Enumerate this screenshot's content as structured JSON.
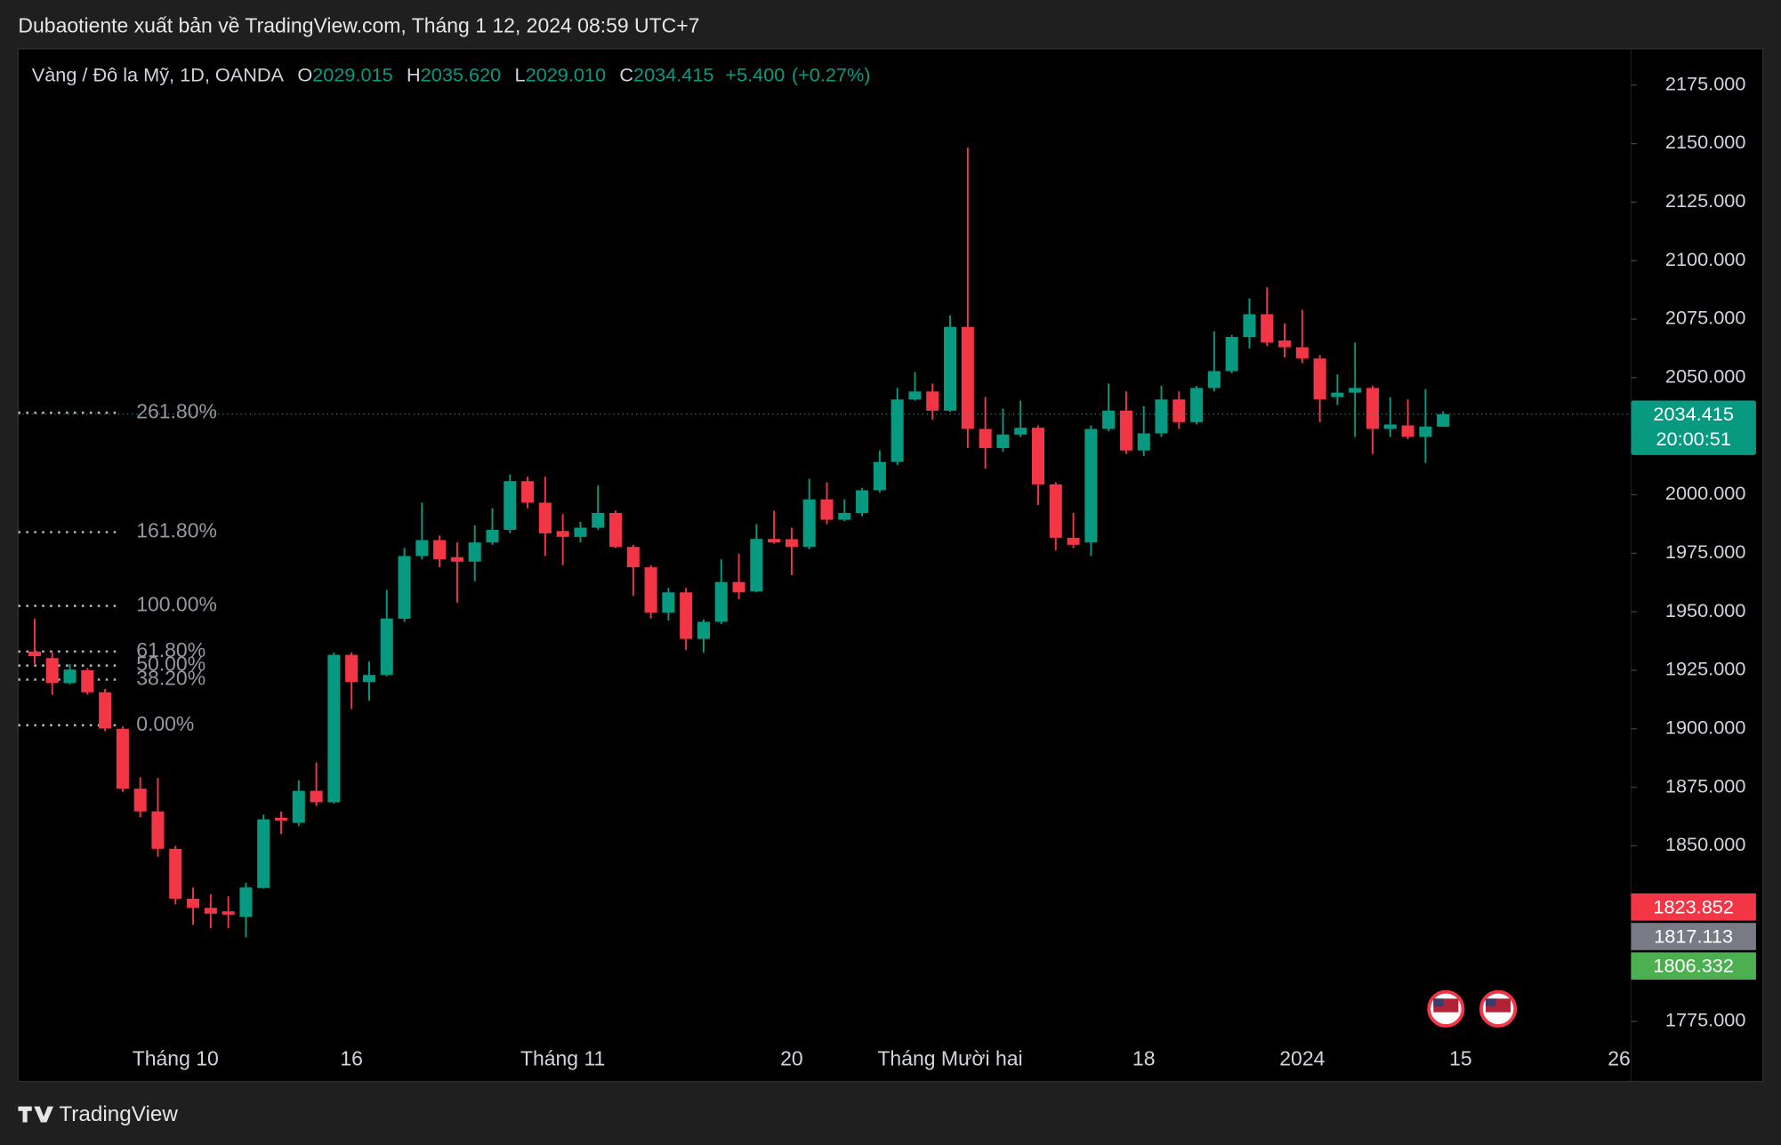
{
  "header": {
    "title": "Dubaotiente xuất bản về TradingView.com, Tháng 1 12, 2024 08:59 UTC+7"
  },
  "footer": {
    "brand": "TradingView"
  },
  "chart_data": {
    "type": "candlestick",
    "legend": {
      "symbol": "Vàng / Đô la Mỹ, 1D, OANDA",
      "items": [
        {
          "key": "O",
          "value": 2029.015,
          "label": "2029.015"
        },
        {
          "key": "H",
          "value": 2035.62,
          "label": "2035.620"
        },
        {
          "key": "L",
          "value": 2029.01,
          "label": "2029.010"
        },
        {
          "key": "C",
          "value": 2034.415,
          "label": "2034.415"
        }
      ],
      "change": {
        "value": 5.4,
        "label": "+5.400"
      },
      "change_pct": {
        "value": 0.27,
        "label": "(+0.27%)"
      }
    },
    "up_color": "#089981",
    "down_color": "#f23645",
    "categories": [
      null,
      null,
      null,
      null,
      null,
      null,
      null,
      null,
      "Tháng 10",
      null,
      null,
      null,
      null,
      null,
      null,
      null,
      null,
      null,
      "16",
      null,
      null,
      null,
      null,
      null,
      null,
      null,
      null,
      null,
      null,
      null,
      "Tháng 11",
      null,
      null,
      null,
      null,
      null,
      null,
      null,
      null,
      null,
      null,
      null,
      null,
      "20",
      null,
      null,
      null,
      null,
      null,
      null,
      null,
      null,
      "Tháng Mười hai",
      null,
      null,
      null,
      null,
      null,
      null,
      null,
      null,
      null,
      null,
      "18",
      null,
      null,
      null,
      null,
      null,
      null,
      null,
      null,
      "2024",
      null,
      null,
      null,
      null,
      null,
      null,
      null,
      null,
      "15",
      null,
      null,
      null,
      null,
      null,
      null,
      null,
      null,
      "26"
    ],
    "open": [
      1933,
      1930.2,
      1919.5,
      1925,
      1915.6,
      1900,
      1874.4,
      1864.7,
      1848.7,
      1827.4,
      1823.5,
      1822,
      1819.6,
      1832,
      1862,
      1859.8,
      1873.5,
      1868.6,
      1931.6,
      1920,
      1923,
      1947,
      1973.8,
      1980.6,
      1973.3,
      1971.4,
      1979.6,
      1985,
      2005.8,
      1996.6,
      1984.5,
      1982,
      1985.9,
      1992.2,
      1977.7,
      1969,
      1949.6,
      1958.3,
      1938.4,
      1945.7,
      1962.7,
      1958.7,
      1981.1,
      1981,
      1977.7,
      1998,
      1989.3,
      1992.2,
      2001.9,
      2014,
      2040.7,
      2044.1,
      2035.9,
      2071.7,
      2028.1,
      2019.9,
      2025.7,
      2028.6,
      2004.4,
      1981.6,
      1979.6,
      2028.1,
      2035.9,
      2018.9,
      2026.2,
      2040.7,
      2031,
      2045.6,
      2052.8,
      2067.4,
      2077.1,
      2065.9,
      2063,
      2058.2,
      2041.7,
      2043.6,
      2045.6,
      2028.1,
      2029.6,
      2024.7,
      2029.015,
      null,
      null,
      null,
      null,
      null,
      null,
      null,
      null,
      null,
      null
    ],
    "high": [
      1947,
      1932.6,
      1927.7,
      1926,
      1917,
      1901,
      1879.3,
      1879,
      1850,
      1832.2,
      1829.3,
      1828.4,
      1834.2,
      1863.3,
      1864.7,
      1878,
      1885.6,
      1932.6,
      1932.6,
      1928.7,
      1959.3,
      1977.2,
      1996.6,
      1982.5,
      1979.6,
      1986.9,
      1994.2,
      2008.7,
      2007.7,
      2007.7,
      1991.7,
      1988.4,
      2003.9,
      1993.2,
      1978.6,
      1969.9,
      1960.2,
      1960.2,
      1946.7,
      1972.4,
      1974.8,
      1987.4,
      1993.2,
      1985.9,
      2006.8,
      2005.3,
      1998,
      2002.9,
      2018.9,
      2045.6,
      2052.4,
      2047.5,
      2076.6,
      2148.3,
      2041.7,
      2036.8,
      2040.2,
      2029.6,
      2005.3,
      1992.2,
      2029.6,
      2047.5,
      2044.1,
      2037.8,
      2046.5,
      2044.1,
      2046.5,
      2069.8,
      2068.3,
      2083.9,
      2088.7,
      2073.2,
      2079,
      2059.6,
      2051.4,
      2065,
      2046.5,
      2041.7,
      2040.7,
      2045.1,
      2035.62,
      null,
      null,
      null,
      null,
      null,
      null,
      null,
      null,
      null,
      null
    ],
    "low": [
      1927.7,
      1914.6,
      1919,
      1914.6,
      1899,
      1873,
      1862.3,
      1845.3,
      1825,
      1816.2,
      1814.8,
      1814.8,
      1810.9,
      1831.7,
      1855,
      1858.4,
      1867,
      1868,
      1908.4,
      1912,
      1922.4,
      1945.7,
      1972.4,
      1969,
      1953.9,
      1963.1,
      1978.6,
      1983.5,
      1994.2,
      1973.8,
      1969.9,
      1979.6,
      1985,
      1977.2,
      1956.8,
      1947.1,
      1946.2,
      1933.6,
      1932.6,
      1944.7,
      1955.4,
      1958.3,
      1979.1,
      1965.6,
      1976.7,
      1987.4,
      1988.8,
      1990.8,
      2000.9,
      2012.6,
      2040.2,
      2032,
      2035.4,
      2019.9,
      2011.1,
      2018.4,
      2024.7,
      1995.6,
      1976.2,
      1977.2,
      1973.8,
      2027.1,
      2017.4,
      2016.5,
      2024.7,
      2028.1,
      2030,
      2044.1,
      2051.9,
      2062.5,
      2063.5,
      2058.6,
      2056.2,
      2031,
      2038.3,
      2024.7,
      2017.4,
      2024.7,
      2023.7,
      2013.6,
      2029.01,
      null,
      null,
      null,
      null,
      null,
      null,
      null,
      null,
      null,
      null
    ],
    "close": [
      1931,
      1919.5,
      1925.3,
      1915.6,
      1900.1,
      1874.4,
      1864.7,
      1848.7,
      1827.4,
      1823.5,
      1821,
      1820.6,
      1832.2,
      1861.3,
      1860.8,
      1873.5,
      1868.6,
      1931.6,
      1920,
      1923,
      1947.1,
      1973.8,
      1980.6,
      1972.4,
      1971.4,
      1979.6,
      1985,
      2005.8,
      1996.6,
      1983.5,
      1982,
      1985.9,
      1992.2,
      1977.7,
      1969,
      1949.6,
      1958.3,
      1938.4,
      1945.7,
      1962.7,
      1958.3,
      1981.1,
      1979.6,
      1977.7,
      1998,
      1989.3,
      1992.2,
      2001.9,
      2014,
      2040.7,
      2044.1,
      2035.9,
      2071.7,
      2028.1,
      2019.9,
      2025.7,
      2028.6,
      2004.4,
      1981.6,
      1978.6,
      2028.1,
      2035.9,
      2018.9,
      2026.2,
      2040.7,
      2031,
      2045.6,
      2052.8,
      2067.4,
      2077.1,
      2065,
      2063,
      2058.2,
      2040.7,
      2043.6,
      2045.6,
      2028.1,
      2030,
      2024.7,
      2029.1,
      2034.415,
      null,
      null,
      null,
      null,
      null,
      null,
      null,
      null,
      null,
      null
    ],
    "ylim": [
      1769.2,
      2190.5
    ],
    "yticks": [
      {
        "value": 1775,
        "label": "1775.000"
      },
      {
        "value": 1850,
        "label": "1850.000"
      },
      {
        "value": 1875,
        "label": "1875.000"
      },
      {
        "value": 1900,
        "label": "1900.000"
      },
      {
        "value": 1925,
        "label": "1925.000"
      },
      {
        "value": 1950,
        "label": "1950.000"
      },
      {
        "value": 1975,
        "label": "1975.000"
      },
      {
        "value": 2000,
        "label": "2000.000"
      },
      {
        "value": 2050,
        "label": "2050.000"
      },
      {
        "value": 2075,
        "label": "2075.000"
      },
      {
        "value": 2100,
        "label": "2100.000"
      },
      {
        "value": 2125,
        "label": "2125.000"
      },
      {
        "value": 2150,
        "label": "2150.000"
      },
      {
        "value": 2175,
        "label": "2175.000"
      }
    ],
    "fib_levels": [
      {
        "value": 2035,
        "label": "261.80%"
      },
      {
        "value": 1984,
        "label": "161.80%"
      },
      {
        "value": 1952.5,
        "label": "100.00%"
      },
      {
        "value": 1933,
        "label": "61.80%"
      },
      {
        "value": 1927,
        "label": "50.00%"
      },
      {
        "value": 1921,
        "label": "38.20%"
      },
      {
        "value": 1901.5,
        "label": "0.00%"
      }
    ],
    "last_price": {
      "value": 2034.415,
      "label": "2034.415",
      "countdown": "20:00:51",
      "color": "#089981"
    },
    "price_labels": [
      {
        "value": 1823.852,
        "label": "1823.852",
        "color": "#f23645"
      },
      {
        "value": 1817.113,
        "label": "1817.113",
        "color": "#787b86"
      },
      {
        "value": 1806.332,
        "label": "1806.332",
        "color": "#4caf50"
      }
    ]
  }
}
